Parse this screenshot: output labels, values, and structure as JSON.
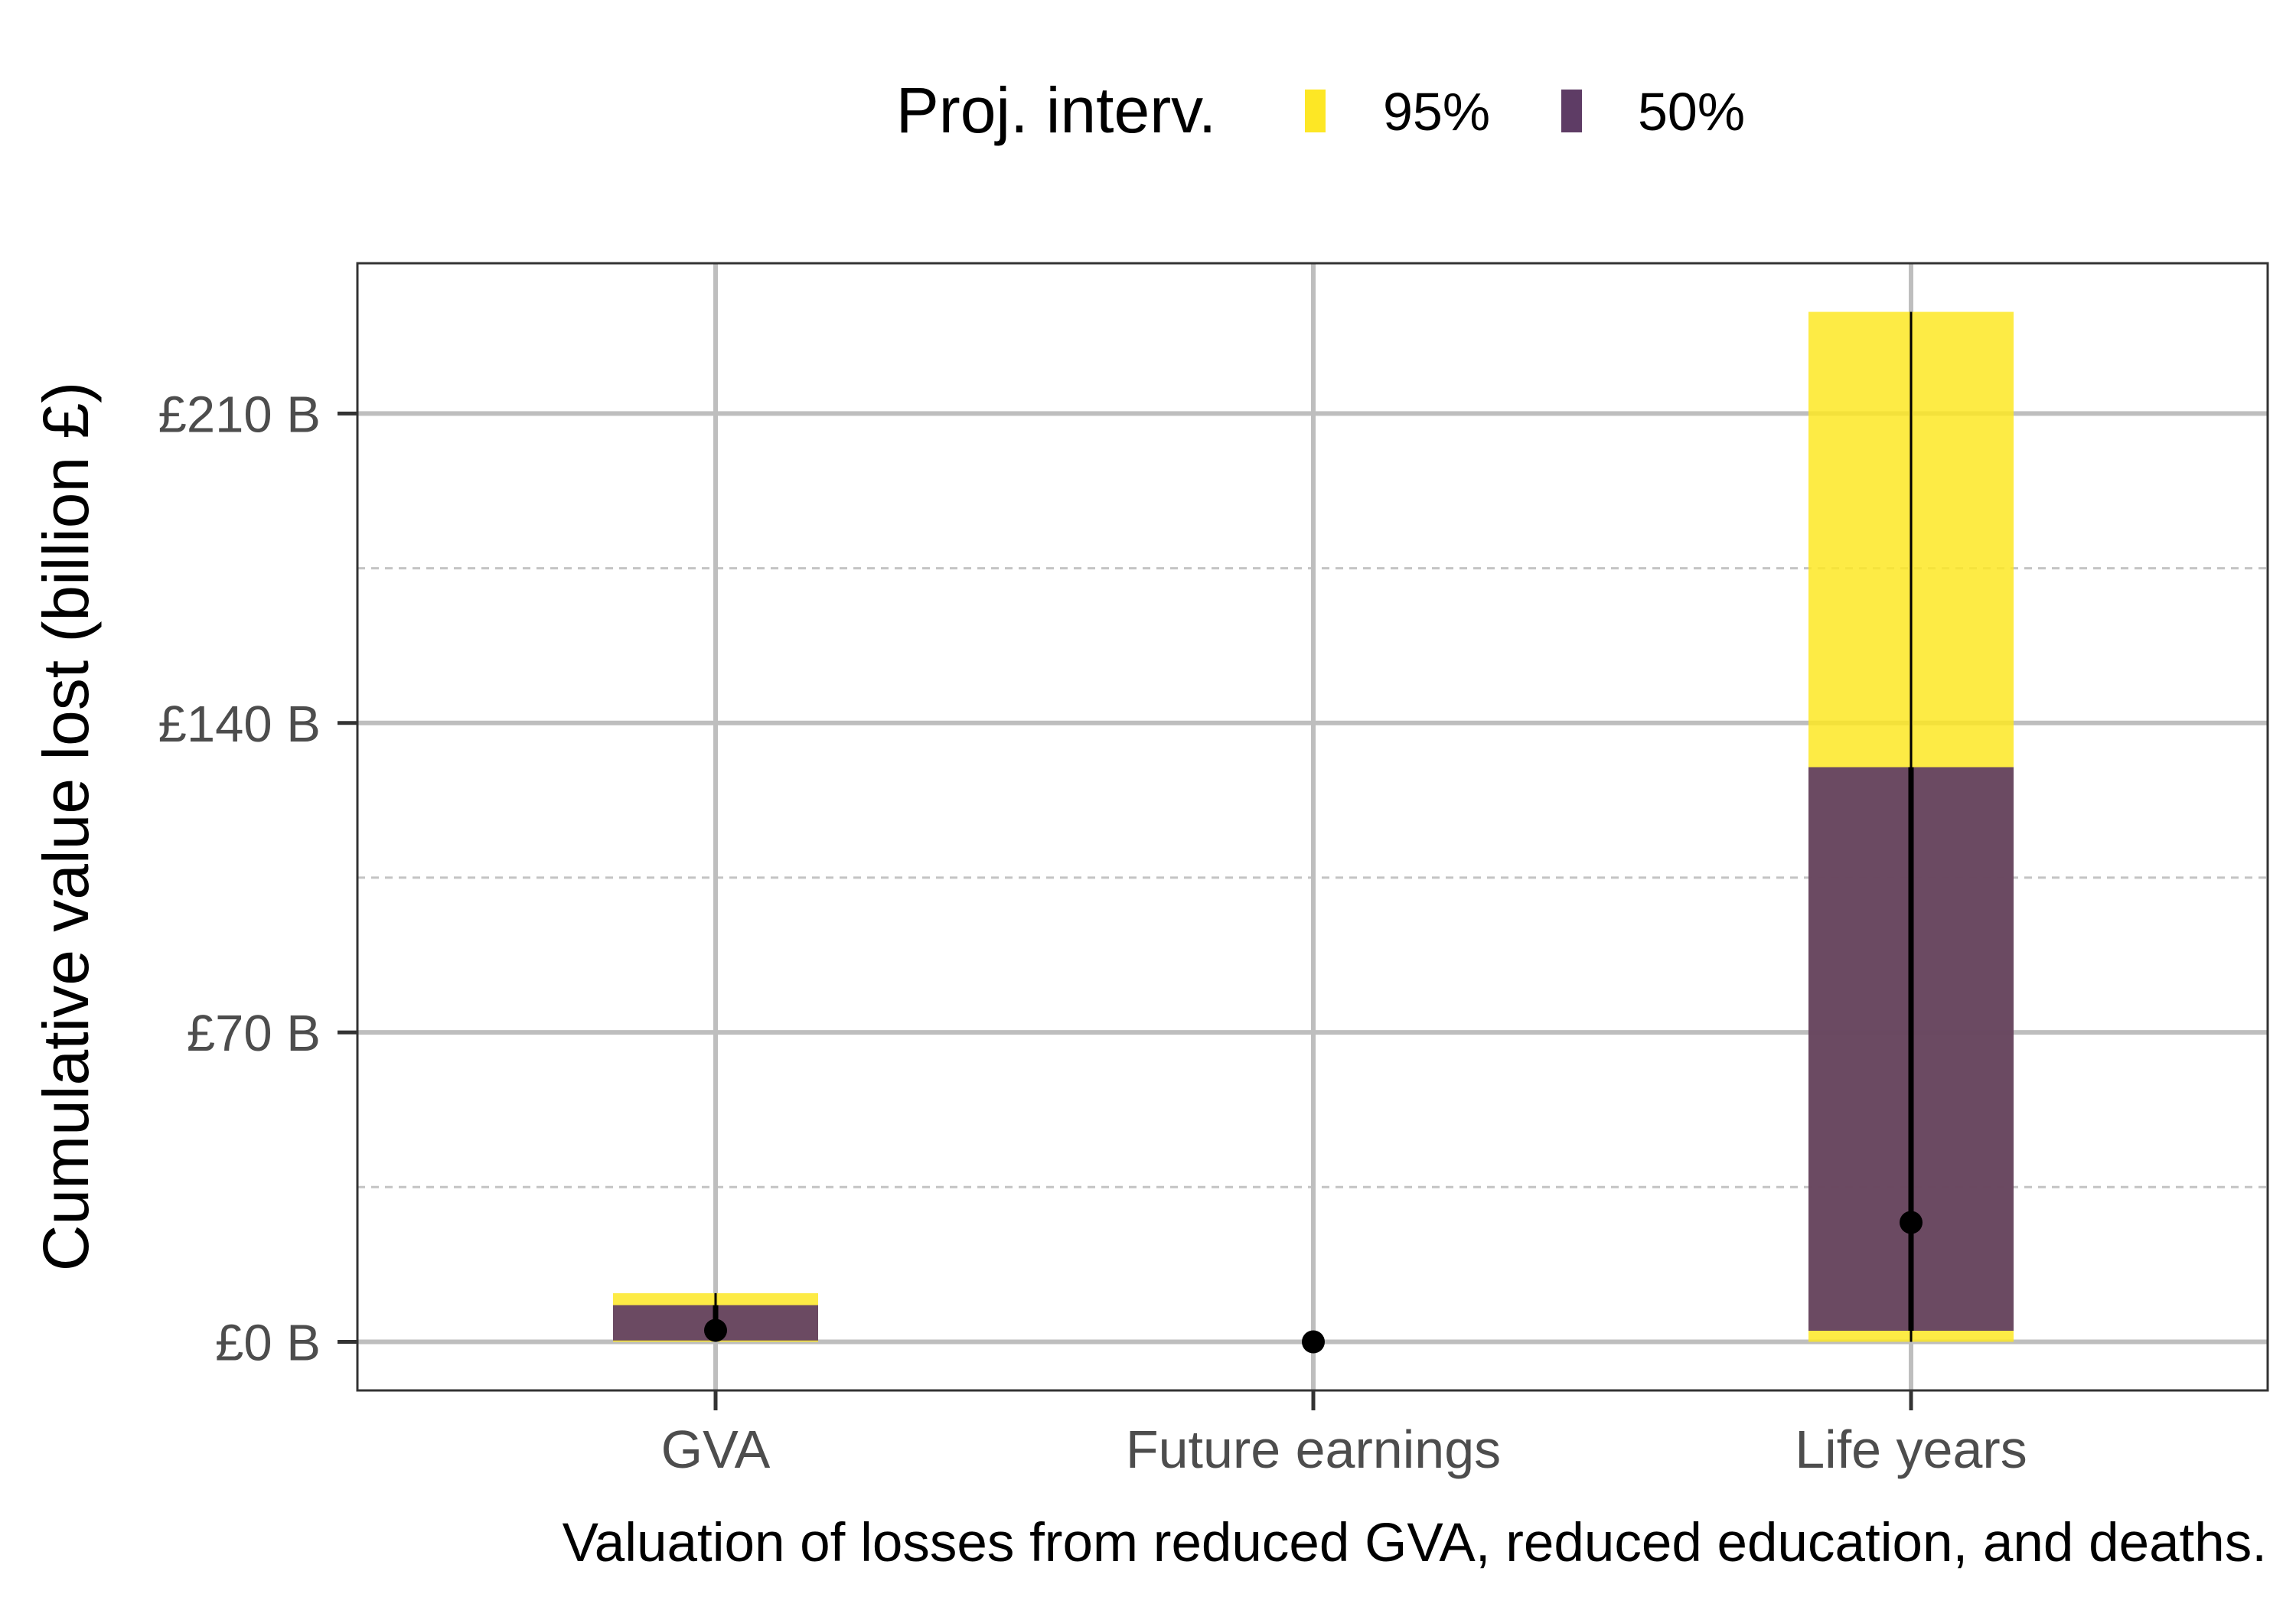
{
  "chart_data": {
    "type": "bar",
    "xlabel": "Valuation of losses from reduced GVA, reduced education, and deaths.",
    "ylabel": "Cumulative value lost (billion £)",
    "ylim": [
      -11,
      244
    ],
    "yticks": [
      0,
      70,
      140,
      210
    ],
    "ytick_labels": [
      "£0 B",
      "£70 B",
      "£140 B",
      "£210 B"
    ],
    "grid": true,
    "legend": {
      "title": "Proj. interv.",
      "position": "top",
      "entries": [
        {
          "label": "95%",
          "color": "#FDE725"
        },
        {
          "label": "50%",
          "color": "#5E3C65"
        }
      ]
    },
    "categories": [
      "GVA",
      "Future earnings",
      "Life years"
    ],
    "intervals": [
      {
        "category": "GVA",
        "lo95": 0,
        "hi95": 11,
        "lo50": 0.3,
        "hi50": 8.3,
        "median": 2.6
      },
      {
        "category": "Future earnings",
        "lo95": 0,
        "hi95": 0,
        "lo50": 0,
        "hi50": 0,
        "median": 0
      },
      {
        "category": "Life years",
        "lo95": 0,
        "hi95": 233,
        "lo50": 2.5,
        "hi50": 130,
        "median": 27
      }
    ]
  }
}
